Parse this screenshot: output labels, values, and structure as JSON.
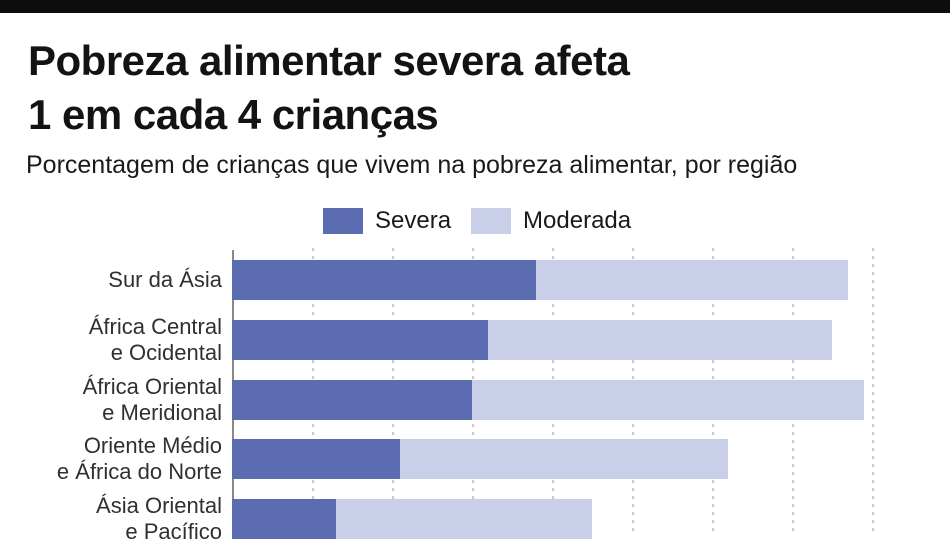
{
  "header": {
    "title_line1": "Pobreza alimentar severa afeta",
    "title_line2": "1 em cada 4 crianças",
    "subtitle": "Porcentagem de crianças que vivem na pobreza alimentar, por região"
  },
  "legend": [
    {
      "label": "Severa",
      "color": "#5b6cb0"
    },
    {
      "label": "Moderada",
      "color": "#c9cfe9"
    }
  ],
  "chart_data": {
    "type": "bar",
    "orientation": "horizontal",
    "stacked": true,
    "title": "Pobreza alimentar severa afeta 1 em cada 4 crianças",
    "subtitle": "Porcentagem de crianças que vivem na pobreza alimentar, por região",
    "categories": [
      "Sur da Ásia",
      "África Central e Ocidental",
      "África Oriental e Meridional",
      "Oriente Médio e África do Norte",
      "Ásia Oriental e Pacífico"
    ],
    "category_lines": [
      [
        "Sur da Ásia"
      ],
      [
        "África Central",
        "e Ocidental"
      ],
      [
        "África Oriental",
        "e Meridional"
      ],
      [
        "Oriente Médio",
        "e África do Norte"
      ],
      [
        "Ásia Oriental",
        "e Pacífico"
      ]
    ],
    "series": [
      {
        "name": "Severa",
        "color": "#5b6cb0",
        "values": [
          38,
          32,
          30,
          21,
          13
        ]
      },
      {
        "name": "Moderada",
        "color": "#c9cfe9",
        "values": [
          39,
          43,
          49,
          41,
          32
        ]
      }
    ],
    "unit": "%",
    "xlim": [
      0,
      90
    ],
    "grid": true,
    "gridline_step_percent": 10,
    "legend_position": "top"
  },
  "colors": {
    "top_bar": "#0d0d0d",
    "severe": "#5b6cb0",
    "moderate": "#c9cfe9",
    "gridline": "#c9c9c9",
    "axis_line": "#898989",
    "label_text": "#303030"
  }
}
